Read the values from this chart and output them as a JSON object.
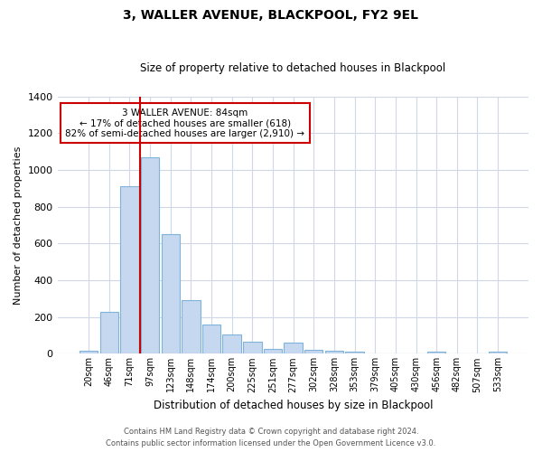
{
  "title": "3, WALLER AVENUE, BLACKPOOL, FY2 9EL",
  "subtitle": "Size of property relative to detached houses in Blackpool",
  "xlabel": "Distribution of detached houses by size in Blackpool",
  "ylabel": "Number of detached properties",
  "bar_labels": [
    "20sqm",
    "46sqm",
    "71sqm",
    "97sqm",
    "123sqm",
    "148sqm",
    "174sqm",
    "200sqm",
    "225sqm",
    "251sqm",
    "277sqm",
    "302sqm",
    "328sqm",
    "353sqm",
    "379sqm",
    "405sqm",
    "430sqm",
    "456sqm",
    "482sqm",
    "507sqm",
    "533sqm"
  ],
  "bar_values": [
    15,
    228,
    910,
    1070,
    650,
    290,
    158,
    105,
    68,
    27,
    62,
    20,
    18,
    10,
    0,
    0,
    0,
    12,
    0,
    0,
    10
  ],
  "bar_color": "#c5d8f0",
  "bar_edge_color": "#7fb3d9",
  "vline_color": "#cc0000",
  "ylim": [
    0,
    1400
  ],
  "yticks": [
    0,
    200,
    400,
    600,
    800,
    1000,
    1200,
    1400
  ],
  "annotation_title": "3 WALLER AVENUE: 84sqm",
  "annotation_line1": "← 17% of detached houses are smaller (618)",
  "annotation_line2": "82% of semi-detached houses are larger (2,910) →",
  "annotation_box_color": "#ffffff",
  "annotation_box_edge": "#cc0000",
  "footer1": "Contains HM Land Registry data © Crown copyright and database right 2024.",
  "footer2": "Contains public sector information licensed under the Open Government Licence v3.0.",
  "background_color": "#ffffff",
  "grid_color": "#d0d8e8"
}
